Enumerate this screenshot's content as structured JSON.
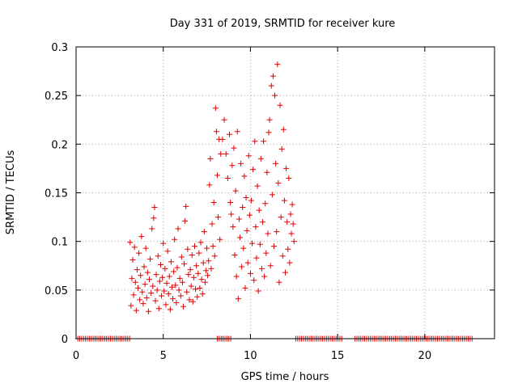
{
  "chart_data": {
    "type": "scatter",
    "title": "Day 331 of 2019, SRMTID for receiver kure",
    "xlabel": "GPS time / hours",
    "ylabel": "SRMTID / TECUs",
    "xlim": [
      0,
      24
    ],
    "ylim": [
      0,
      0.3
    ],
    "grid": true,
    "x_ticks": [
      0,
      5,
      10,
      15,
      20
    ],
    "x_tick_labels": [
      "0",
      "5",
      "10",
      "15",
      "20"
    ],
    "y_ticks": [
      0,
      0.05,
      0.1,
      0.15,
      0.2,
      0.25,
      0.3
    ],
    "y_tick_labels": [
      "0",
      "0.05",
      "0.1",
      "0.15",
      "0.2",
      "0.25",
      "0.3"
    ],
    "marker": "+",
    "series": [
      {
        "name": "SRMTID",
        "color": "#e00000",
        "points": [
          [
            3.1,
            0.099
          ],
          [
            3.15,
            0.034
          ],
          [
            3.2,
            0.062
          ],
          [
            3.25,
            0.081
          ],
          [
            3.3,
            0.045
          ],
          [
            3.35,
            0.094
          ],
          [
            3.4,
            0.058
          ],
          [
            3.45,
            0.029
          ],
          [
            3.5,
            0.071
          ],
          [
            3.55,
            0.052
          ],
          [
            3.6,
            0.088
          ],
          [
            3.65,
            0.04
          ],
          [
            3.7,
            0.065
          ],
          [
            3.75,
            0.105
          ],
          [
            3.8,
            0.048
          ],
          [
            3.85,
            0.036
          ],
          [
            3.9,
            0.074
          ],
          [
            3.95,
            0.056
          ],
          [
            4.0,
            0.093
          ],
          [
            4.05,
            0.042
          ],
          [
            4.1,
            0.068
          ],
          [
            4.15,
            0.028
          ],
          [
            4.2,
            0.061
          ],
          [
            4.25,
            0.082
          ],
          [
            4.3,
            0.047
          ],
          [
            4.35,
            0.113
          ],
          [
            4.4,
            0.054
          ],
          [
            4.45,
            0.124
          ],
          [
            4.5,
            0.135
          ],
          [
            4.55,
            0.039
          ],
          [
            4.6,
            0.066
          ],
          [
            4.65,
            0.05
          ],
          [
            4.7,
            0.085
          ],
          [
            4.75,
            0.031
          ],
          [
            4.8,
            0.059
          ],
          [
            4.85,
            0.076
          ],
          [
            4.9,
            0.044
          ],
          [
            4.95,
            0.063
          ],
          [
            5.0,
            0.098
          ],
          [
            5.05,
            0.049
          ],
          [
            5.1,
            0.072
          ],
          [
            5.15,
            0.035
          ],
          [
            5.2,
            0.057
          ],
          [
            5.25,
            0.09
          ],
          [
            5.3,
            0.046
          ],
          [
            5.35,
            0.064
          ],
          [
            5.4,
            0.03
          ],
          [
            5.45,
            0.079
          ],
          [
            5.5,
            0.053
          ],
          [
            5.55,
            0.041
          ],
          [
            5.6,
            0.069
          ],
          [
            5.65,
            0.102
          ],
          [
            5.7,
            0.055
          ],
          [
            5.75,
            0.037
          ],
          [
            5.8,
            0.073
          ],
          [
            5.85,
            0.113
          ],
          [
            5.9,
            0.05
          ],
          [
            5.95,
            0.062
          ],
          [
            6.0,
            0.044
          ],
          [
            6.05,
            0.084
          ],
          [
            6.1,
            0.058
          ],
          [
            6.15,
            0.033
          ],
          [
            6.2,
            0.077
          ],
          [
            6.25,
            0.121
          ],
          [
            6.3,
            0.136
          ],
          [
            6.35,
            0.048
          ],
          [
            6.4,
            0.092
          ],
          [
            6.45,
            0.066
          ],
          [
            6.5,
            0.04
          ],
          [
            6.55,
            0.071
          ],
          [
            6.6,
            0.054
          ],
          [
            6.65,
            0.086
          ],
          [
            6.7,
            0.038
          ],
          [
            6.75,
            0.063
          ],
          [
            6.8,
            0.095
          ],
          [
            6.85,
            0.051
          ],
          [
            6.9,
            0.075
          ],
          [
            6.95,
            0.043
          ],
          [
            7.0,
            0.067
          ],
          [
            7.05,
            0.088
          ],
          [
            7.1,
            0.052
          ],
          [
            7.15,
            0.099
          ],
          [
            7.2,
            0.061
          ],
          [
            7.25,
            0.046
          ],
          [
            7.3,
            0.078
          ],
          [
            7.35,
            0.11
          ],
          [
            7.4,
            0.058
          ],
          [
            7.45,
            0.07
          ],
          [
            7.5,
            0.093
          ],
          [
            7.55,
            0.065
          ],
          [
            7.6,
            0.08
          ],
          [
            7.65,
            0.158
          ],
          [
            7.7,
            0.185
          ],
          [
            7.75,
            0.072
          ],
          [
            7.8,
            0.118
          ],
          [
            7.85,
            0.095
          ],
          [
            7.9,
            0.14
          ],
          [
            7.95,
            0.085
          ],
          [
            8.0,
            0.237
          ],
          [
            8.05,
            0.213
          ],
          [
            8.1,
            0.168
          ],
          [
            8.15,
            0.125
          ],
          [
            8.2,
            0.205
          ],
          [
            8.25,
            0.102
          ],
          [
            8.3,
            0.19
          ],
          [
            8.4,
            0.205
          ],
          [
            8.5,
            0.225
          ],
          [
            8.6,
            0.19
          ],
          [
            8.7,
            0.165
          ],
          [
            8.8,
            0.21
          ],
          [
            8.85,
            0.14
          ],
          [
            8.9,
            0.128
          ],
          [
            8.95,
            0.178
          ],
          [
            9.0,
            0.115
          ],
          [
            9.05,
            0.196
          ],
          [
            9.1,
            0.086
          ],
          [
            9.15,
            0.152
          ],
          [
            9.2,
            0.064
          ],
          [
            9.25,
            0.213
          ],
          [
            9.3,
            0.041
          ],
          [
            9.35,
            0.123
          ],
          [
            9.4,
            0.104
          ],
          [
            9.45,
            0.18
          ],
          [
            9.5,
            0.074
          ],
          [
            9.55,
            0.135
          ],
          [
            9.6,
            0.093
          ],
          [
            9.65,
            0.167
          ],
          [
            9.7,
            0.052
          ],
          [
            9.75,
            0.145
          ],
          [
            9.8,
            0.111
          ],
          [
            9.85,
            0.078
          ],
          [
            9.9,
            0.188
          ],
          [
            9.95,
            0.127
          ],
          [
            10.0,
            0.067
          ],
          [
            10.05,
            0.142
          ],
          [
            10.1,
            0.098
          ],
          [
            10.15,
            0.174
          ],
          [
            10.2,
            0.06
          ],
          [
            10.25,
            0.203
          ],
          [
            10.3,
            0.115
          ],
          [
            10.35,
            0.083
          ],
          [
            10.4,
            0.157
          ],
          [
            10.45,
            0.049
          ],
          [
            10.5,
            0.132
          ],
          [
            10.55,
            0.097
          ],
          [
            10.6,
            0.185
          ],
          [
            10.65,
            0.072
          ],
          [
            10.7,
            0.12
          ],
          [
            10.75,
            0.203
          ],
          [
            10.8,
            0.064
          ],
          [
            10.85,
            0.139
          ],
          [
            10.9,
            0.088
          ],
          [
            10.95,
            0.171
          ],
          [
            11.0,
            0.108
          ],
          [
            11.05,
            0.212
          ],
          [
            11.1,
            0.225
          ],
          [
            11.15,
            0.075
          ],
          [
            11.2,
            0.26
          ],
          [
            11.25,
            0.148
          ],
          [
            11.3,
            0.27
          ],
          [
            11.35,
            0.095
          ],
          [
            11.4,
            0.25
          ],
          [
            11.45,
            0.18
          ],
          [
            11.5,
            0.11
          ],
          [
            11.55,
            0.282
          ],
          [
            11.6,
            0.16
          ],
          [
            11.65,
            0.058
          ],
          [
            11.7,
            0.24
          ],
          [
            11.75,
            0.125
          ],
          [
            11.8,
            0.195
          ],
          [
            11.85,
            0.085
          ],
          [
            11.9,
            0.215
          ],
          [
            11.95,
            0.142
          ],
          [
            12.0,
            0.068
          ],
          [
            12.05,
            0.175
          ],
          [
            12.1,
            0.12
          ],
          [
            12.15,
            0.092
          ],
          [
            12.2,
            0.165
          ],
          [
            12.25,
            0.078
          ],
          [
            12.3,
            0.128
          ],
          [
            12.35,
            0.108
          ],
          [
            12.4,
            0.138
          ],
          [
            12.45,
            0.118
          ],
          [
            12.5,
            0.1
          ]
        ]
      },
      {
        "name": "zero-level",
        "color": "#e00000",
        "segments": [
          [
            0.1,
            3.1
          ],
          [
            8.1,
            8.9
          ],
          [
            12.6,
            15.3
          ],
          [
            16.0,
            22.8
          ]
        ]
      }
    ]
  }
}
